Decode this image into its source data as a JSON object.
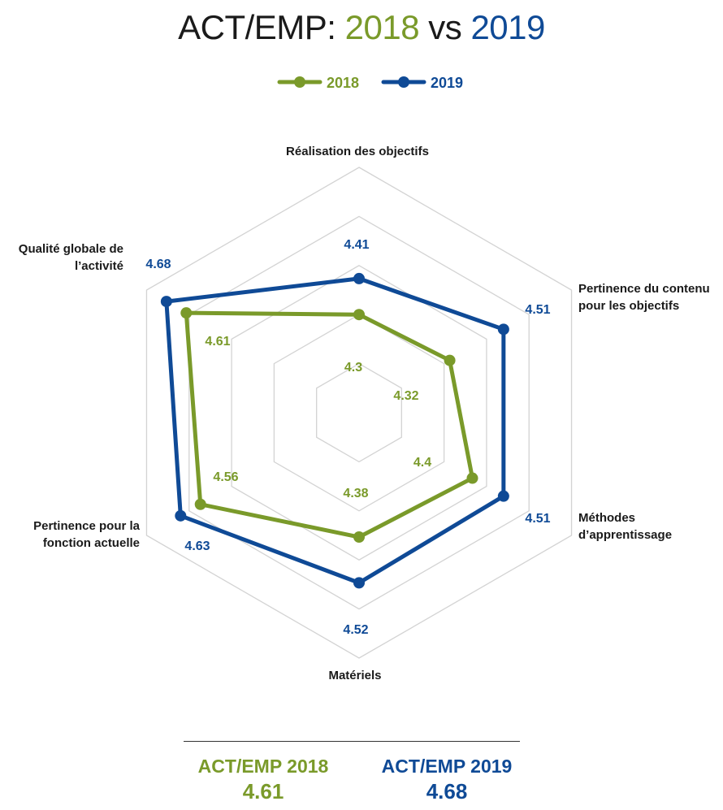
{
  "title": {
    "prefix": "ACT/EMP:",
    "year1": "2018",
    "middle": "vs",
    "year2": "2019"
  },
  "colors": {
    "s2018": "#7a9a2a",
    "s2019": "#0f4a96",
    "grid": "#d3d3d3"
  },
  "chart_data": {
    "type": "radar",
    "axes": [
      "Réalisation des objectifs",
      "Pertinence du contenu pour les objectifs",
      "Méthodes d’apprentissage",
      "Matériels",
      "Pertinence pour la fonction actuelle",
      "Qualité globale de l’activité"
    ],
    "axis_label_lines": [
      [
        "Réalisation des objectifs"
      ],
      [
        "Pertinence du contenu",
        "pour les objectifs"
      ],
      [
        "Méthodes",
        "d’apprentissage"
      ],
      [
        "Matériels"
      ],
      [
        "Pertinence pour la",
        "fonction actuelle"
      ],
      [
        "Qualité globale de",
        "l’activité"
      ]
    ],
    "series": [
      {
        "name": "2018",
        "values": [
          4.3,
          4.32,
          4.4,
          4.38,
          4.56,
          4.61
        ]
      },
      {
        "name": "2019",
        "values": [
          4.41,
          4.51,
          4.51,
          4.52,
          4.63,
          4.68
        ]
      }
    ],
    "range": [
      4.0,
      4.75
    ],
    "grid_levels": 5,
    "legend": "top-center"
  },
  "summary": {
    "s2018": {
      "label": "ACT/EMP 2018",
      "value": "4.61"
    },
    "s2019": {
      "label": "ACT/EMP 2019",
      "value": "4.68"
    }
  }
}
